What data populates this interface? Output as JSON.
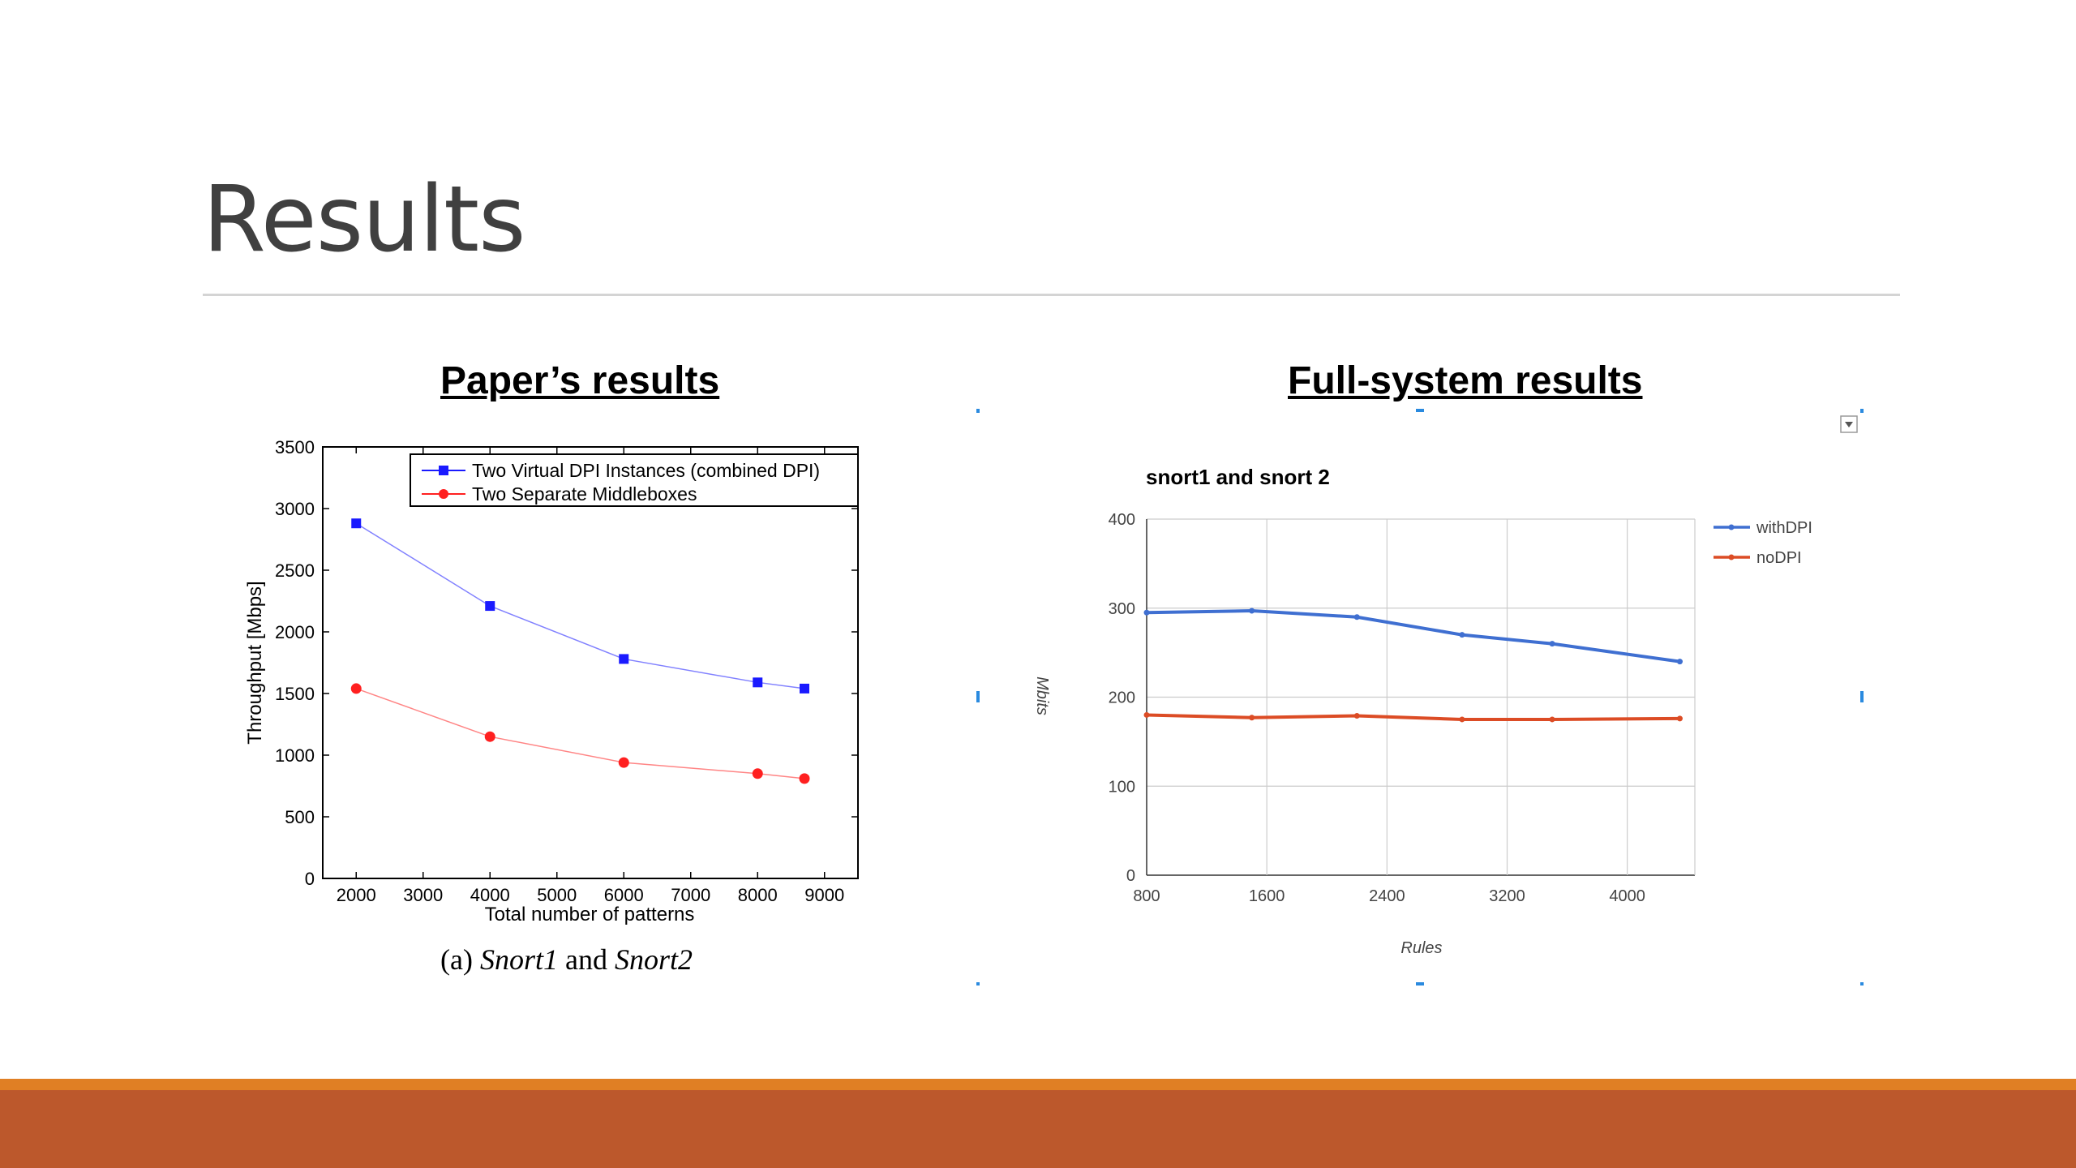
{
  "slide": {
    "title": "Results"
  },
  "left_panel": {
    "heading": "Paper’s results",
    "caption_prefix": "(a) ",
    "caption_a": "Snort1",
    "caption_mid": " and ",
    "caption_b": "Snort2"
  },
  "right_panel": {
    "heading": "Full-system results",
    "dropdown_icon": "chevron-down-icon"
  },
  "colors": {
    "accent_orange": "#e07f24",
    "footer_band": "#bc582c"
  },
  "chart_data": [
    {
      "type": "line",
      "title": "",
      "xlabel": "Total number of patterns",
      "ylabel": "Throughput [Mbps]",
      "xlim": [
        1500,
        9500
      ],
      "ylim": [
        0,
        3500
      ],
      "xticks": [
        2000,
        3000,
        4000,
        5000,
        6000,
        7000,
        8000,
        9000
      ],
      "yticks": [
        0,
        500,
        1000,
        1500,
        2000,
        2500,
        3000,
        3500
      ],
      "grid": false,
      "legend_position": "top-right",
      "series": [
        {
          "name": "Two Virtual DPI Instances (combined DPI)",
          "color": "#1a1aff",
          "marker": "square",
          "x": [
            2000,
            4000,
            6000,
            8000,
            8700
          ],
          "values": [
            2880,
            2210,
            1780,
            1590,
            1540
          ]
        },
        {
          "name": "Two Separate Middleboxes",
          "color": "#ff2020",
          "marker": "circle",
          "x": [
            2000,
            4000,
            6000,
            8000,
            8700
          ],
          "values": [
            1540,
            1150,
            940,
            850,
            810
          ]
        }
      ]
    },
    {
      "type": "line",
      "title": "snort1 and snort 2",
      "xlabel": "Rules",
      "ylabel": "Mbits",
      "xlim": [
        800,
        4450
      ],
      "ylim": [
        0,
        400
      ],
      "xticks": [
        800,
        1600,
        2400,
        3200,
        4000
      ],
      "yticks": [
        0,
        100,
        200,
        300,
        400
      ],
      "grid": true,
      "legend_position": "right",
      "series": [
        {
          "name": "withDPI",
          "color": "#3f6fd1",
          "x": [
            800,
            1500,
            2200,
            2900,
            3500,
            4350
          ],
          "values": [
            295,
            297,
            290,
            270,
            260,
            240
          ]
        },
        {
          "name": "noDPI",
          "color": "#dc4c25",
          "x": [
            800,
            1500,
            2200,
            2900,
            3500,
            4350
          ],
          "values": [
            180,
            177,
            179,
            175,
            175,
            176
          ]
        }
      ]
    }
  ]
}
